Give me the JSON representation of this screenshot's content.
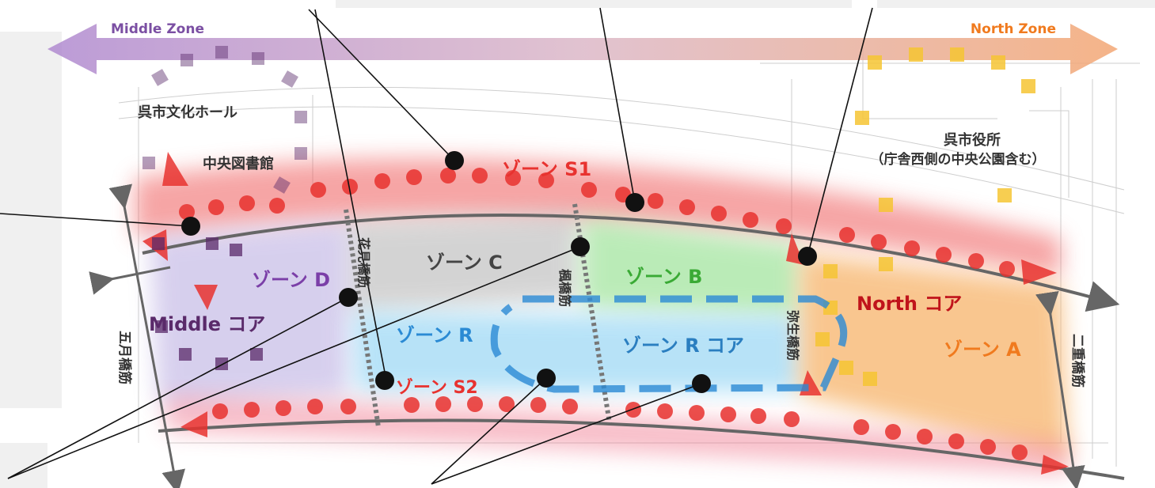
{
  "zone_bar": {
    "left_label": "Middle Zone",
    "right_label": "North Zone",
    "left_color": "#9b6bc2",
    "right_color": "#f0934e"
  },
  "landmarks": {
    "culture_hall": "呉市文化ホール",
    "central_library": "中央図書館",
    "city_hall": "呉市役所",
    "city_hall_note": "（庁舎西側の中央公園含む）"
  },
  "zones": {
    "s1": "ゾーン S1",
    "s2": "ゾーン S2",
    "a": "ゾーン A",
    "b": "ゾーン B",
    "c": "ゾーン C",
    "d": "ゾーン D",
    "r": "ゾーン R",
    "r_core": "ゾーン R コア",
    "middle_core": "Middle コア",
    "north_core": "North コア"
  },
  "streets": {
    "satsuki": "五月橋筋",
    "hanami": "花見橋筋",
    "kaede": "楓橋筋",
    "yayoi": "弥生橋筋",
    "nijyu": "二重橋筋"
  },
  "colors": {
    "zone_s_red": "#e8322f",
    "zone_a_orange": "#f07a1e",
    "zone_b_green": "#3aaa35",
    "zone_c_gray": "#555555",
    "zone_d_purple": "#7b3fa8",
    "zone_r_blue": "#2a8ad4",
    "core_purple": "#5a2a6a",
    "north_core_red": "#c0141b",
    "north_ring_yellow": "#f6c533"
  }
}
